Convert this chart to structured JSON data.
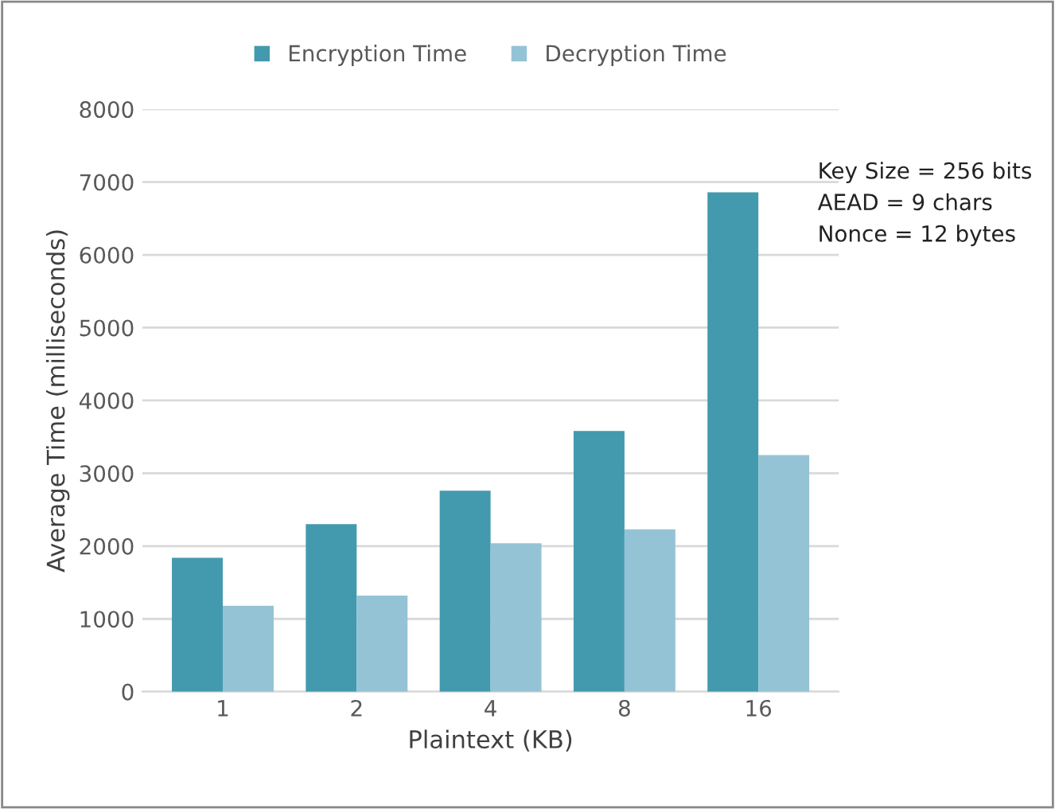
{
  "chart_data": {
    "type": "bar",
    "xlabel": "Plaintext (KB)",
    "ylabel": "Average Time (milliseconds)",
    "categories": [
      "1",
      "2",
      "4",
      "8",
      "16"
    ],
    "series": [
      {
        "name": "Encryption Time",
        "color": "#4399ae",
        "values": [
          1840,
          2300,
          2760,
          3580,
          6860
        ]
      },
      {
        "name": "Decryption Time",
        "color": "#93c3d4",
        "values": [
          1180,
          1320,
          2040,
          2230,
          3250
        ]
      }
    ],
    "ylim": [
      0,
      8000
    ],
    "yticks": [
      0,
      1000,
      2000,
      3000,
      4000,
      5000,
      6000,
      7000,
      8000
    ],
    "grid": "y",
    "legend": "top",
    "annotations": [
      "Key Size = 256 bits\nAEAD = 9 chars\nNonce = 12 bytes"
    ]
  }
}
